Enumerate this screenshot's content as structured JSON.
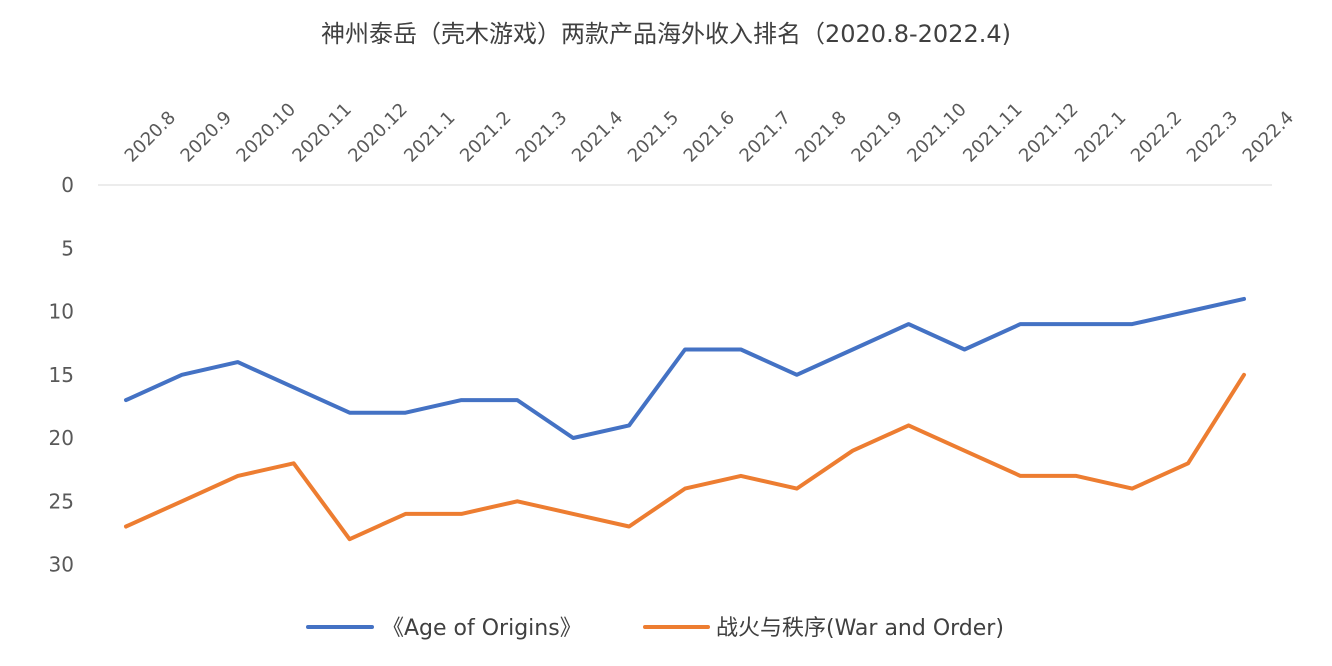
{
  "chart_data": {
    "type": "line",
    "title": "神州泰岳（壳木游戏）两款产品海外收入排名（2020.8-2022.4)",
    "xlabel": "",
    "ylabel": "",
    "x": [
      "2020.8",
      "2020.9",
      "2020.10",
      "2020.11",
      "2020.12",
      "2021.1",
      "2021.2",
      "2021.3",
      "2021.4",
      "2021.5",
      "2021.6",
      "2021.7",
      "2021.8",
      "2021.9",
      "2021.10",
      "2021.11",
      "2021.12",
      "2022.1",
      "2022.2",
      "2022.3",
      "2022.4"
    ],
    "y_ticks": [
      0,
      5,
      10,
      15,
      20,
      25,
      30
    ],
    "ylim": [
      0,
      30
    ],
    "y_reversed": true,
    "x_axis_position": "top",
    "grid": false,
    "legend_position": "bottom",
    "series": [
      {
        "name": "《Age of Origins》",
        "color": "#4472C4",
        "values": [
          17,
          15,
          14,
          16,
          18,
          18,
          17,
          17,
          20,
          19,
          13,
          13,
          15,
          13,
          11,
          13,
          11,
          11,
          11,
          10,
          9
        ]
      },
      {
        "name": "战火与秩序(War and Order)",
        "color": "#ED7D31",
        "values": [
          27,
          25,
          23,
          22,
          28,
          26,
          26,
          25,
          26,
          27,
          24,
          23,
          24,
          21,
          19,
          21,
          23,
          23,
          24,
          22,
          15
        ]
      }
    ]
  }
}
